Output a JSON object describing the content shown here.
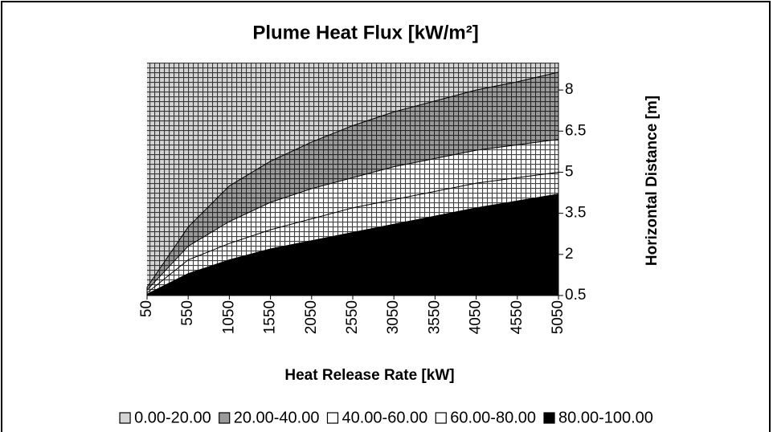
{
  "chart_data": {
    "type": "contour",
    "title": "Plume Heat Flux [kW/m²]",
    "x_label": "Heat Release Rate [kW]",
    "y_label": "Horizontal Distance [m]",
    "x": [
      50,
      550,
      1050,
      1550,
      2050,
      2550,
      3050,
      3550,
      4050,
      4550,
      5050
    ],
    "xlim": [
      50,
      5050
    ],
    "xticks": [
      50,
      550,
      1050,
      1550,
      2050,
      2550,
      3050,
      3550,
      4050,
      4550,
      5050
    ],
    "ylim": [
      0.5,
      9
    ],
    "yticks": [
      0.5,
      2,
      3.5,
      5,
      6.5,
      8
    ],
    "grid": true,
    "legend": "bottom",
    "series": [
      {
        "name": "0.00-20.00",
        "color": "#d4d4d4"
      },
      {
        "name": "20.00-40.00",
        "color": "#9a9a9a",
        "values": [
          0.8,
          3.0,
          4.5,
          5.4,
          6.1,
          6.7,
          7.2,
          7.6,
          8.0,
          8.3,
          8.65
        ]
      },
      {
        "name": "40.00-60.00",
        "color": "#ffffff",
        "values": [
          0.7,
          2.3,
          3.2,
          3.9,
          4.4,
          4.8,
          5.2,
          5.5,
          5.8,
          6.0,
          6.2
        ]
      },
      {
        "name": "60.00-80.00",
        "color": "#ffffff",
        "values": [
          0.6,
          1.8,
          2.4,
          2.9,
          3.3,
          3.7,
          4.0,
          4.3,
          4.6,
          4.8,
          5.0
        ]
      },
      {
        "name": "80.00-100.00",
        "color": "#000000",
        "values": [
          0.55,
          1.3,
          1.8,
          2.2,
          2.5,
          2.8,
          3.1,
          3.4,
          3.7,
          3.95,
          4.2
        ]
      }
    ]
  }
}
